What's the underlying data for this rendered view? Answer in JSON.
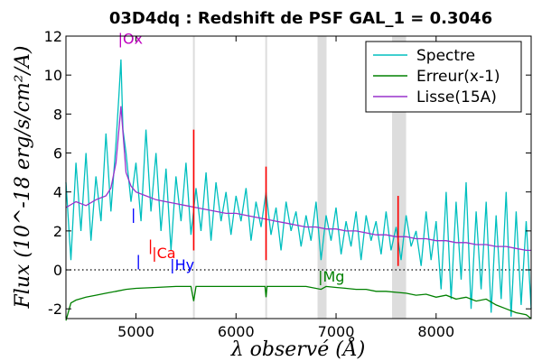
{
  "chart_data": {
    "type": "line",
    "title": "03D4dq : Redshift de PSF GAL_1 = 0.3046",
    "xlabel": "λ observé (Å)",
    "ylabel": "Flux (10^-18 erg/s/cm²/A)",
    "xlim": [
      4300,
      8950
    ],
    "ylim": [
      -2.5,
      12
    ],
    "x_ticks": [
      {
        "value": 5000,
        "label": "5000"
      },
      {
        "value": 6000,
        "label": "6000"
      },
      {
        "value": 7000,
        "label": "7000"
      },
      {
        "value": 8000,
        "label": "8000"
      }
    ],
    "y_ticks": [
      {
        "value": -2,
        "label": "-2"
      },
      {
        "value": 0,
        "label": "0"
      },
      {
        "value": 2,
        "label": "2"
      },
      {
        "value": 4,
        "label": "4"
      },
      {
        "value": 6,
        "label": "6"
      },
      {
        "value": 8,
        "label": "8"
      },
      {
        "value": 10,
        "label": "10"
      },
      {
        "value": 12,
        "label": "12"
      }
    ],
    "zero_line": true,
    "legend_position": "top-right",
    "sky_bands": [
      {
        "x": 5577,
        "width": 15
      },
      {
        "x": 6300,
        "width": 15
      },
      {
        "x": 6860,
        "width": 90
      },
      {
        "x": 7630,
        "width": 140
      }
    ],
    "series": [
      {
        "name": "Spectre",
        "color": "#00bfbf",
        "x": [
          4300,
          4350,
          4400,
          4450,
          4500,
          4550,
          4600,
          4650,
          4700,
          4750,
          4800,
          4830,
          4850,
          4870,
          4900,
          4950,
          5000,
          5050,
          5100,
          5150,
          5200,
          5250,
          5300,
          5350,
          5400,
          5450,
          5500,
          5550,
          5600,
          5650,
          5700,
          5750,
          5800,
          5850,
          5900,
          5950,
          6000,
          6050,
          6100,
          6150,
          6200,
          6250,
          6300,
          6350,
          6400,
          6450,
          6500,
          6550,
          6600,
          6650,
          6700,
          6750,
          6800,
          6850,
          6900,
          6950,
          7000,
          7050,
          7100,
          7150,
          7200,
          7250,
          7300,
          7350,
          7400,
          7450,
          7500,
          7550,
          7600,
          7650,
          7700,
          7750,
          7800,
          7850,
          7900,
          7950,
          8000,
          8050,
          8100,
          8150,
          8200,
          8250,
          8300,
          8350,
          8400,
          8450,
          8500,
          8550,
          8600,
          8650,
          8700,
          8750,
          8800,
          8850,
          8900,
          8950
        ],
        "y": [
          4.5,
          0.5,
          5.5,
          2.0,
          6.0,
          1.5,
          4.8,
          2.5,
          7.0,
          3.0,
          6.5,
          9.0,
          10.8,
          7.2,
          6.0,
          3.5,
          5.5,
          2.5,
          7.2,
          3.0,
          6.0,
          2.0,
          5.2,
          1.0,
          4.8,
          2.5,
          5.5,
          1.8,
          4.2,
          2.0,
          5.0,
          1.5,
          4.5,
          2.5,
          4.0,
          1.8,
          3.8,
          2.5,
          4.2,
          1.5,
          3.5,
          2.2,
          4.0,
          1.8,
          3.2,
          1.0,
          3.5,
          2.0,
          3.0,
          1.2,
          2.8,
          1.5,
          3.5,
          0.5,
          2.8,
          1.5,
          3.2,
          0.8,
          2.5,
          1.2,
          3.0,
          0.5,
          2.8,
          1.5,
          2.5,
          0.8,
          3.0,
          1.0,
          2.2,
          0.5,
          2.8,
          1.2,
          2.0,
          0.2,
          3.0,
          0.5,
          2.5,
          -1.0,
          4.0,
          -1.5,
          3.5,
          -0.5,
          4.5,
          -2.0,
          3.0,
          -1.0,
          3.5,
          -2.2,
          2.8,
          -1.5,
          4.0,
          -2.4,
          3.0,
          -1.8,
          2.5,
          -2.0
        ]
      },
      {
        "name": "Erreur(x-1)",
        "color": "#008000",
        "x": [
          4300,
          4350,
          4400,
          4500,
          4600,
          4700,
          4800,
          4900,
          5000,
          5200,
          5400,
          5550,
          5577,
          5600,
          5800,
          6000,
          6200,
          6290,
          6300,
          6310,
          6500,
          6700,
          6850,
          6900,
          7000,
          7100,
          7200,
          7300,
          7400,
          7500,
          7600,
          7700,
          7800,
          7900,
          8000,
          8100,
          8200,
          8300,
          8400,
          8500,
          8600,
          8700,
          8800,
          8900,
          8950
        ],
        "y": [
          -2.6,
          -1.7,
          -1.55,
          -1.4,
          -1.3,
          -1.2,
          -1.1,
          -1.0,
          -0.95,
          -0.9,
          -0.85,
          -0.85,
          -1.6,
          -0.85,
          -0.85,
          -0.85,
          -0.85,
          -0.85,
          -1.4,
          -0.85,
          -0.85,
          -0.85,
          -1.0,
          -0.85,
          -0.9,
          -0.95,
          -1.0,
          -1.0,
          -1.1,
          -1.1,
          -1.15,
          -1.2,
          -1.3,
          -1.25,
          -1.4,
          -1.3,
          -1.5,
          -1.4,
          -1.6,
          -1.5,
          -1.8,
          -2.0,
          -2.2,
          -2.3,
          -2.5
        ]
      },
      {
        "name": "Lisse(15A)",
        "color": "#9932cc",
        "x": [
          4300,
          4400,
          4500,
          4600,
          4700,
          4750,
          4800,
          4850,
          4900,
          4950,
          5000,
          5100,
          5200,
          5300,
          5400,
          5500,
          5600,
          5700,
          5800,
          5900,
          6000,
          6100,
          6200,
          6300,
          6400,
          6500,
          6600,
          6700,
          6800,
          6900,
          7000,
          7100,
          7200,
          7300,
          7400,
          7500,
          7600,
          7700,
          7800,
          7900,
          8000,
          8100,
          8200,
          8300,
          8400,
          8500,
          8600,
          8700,
          8800,
          8900,
          8950
        ],
        "y": [
          3.2,
          3.5,
          3.3,
          3.6,
          3.8,
          4.2,
          5.5,
          8.4,
          5.0,
          4.3,
          4.0,
          3.8,
          3.6,
          3.5,
          3.4,
          3.3,
          3.2,
          3.1,
          3.0,
          2.9,
          2.9,
          2.8,
          2.7,
          2.6,
          2.5,
          2.4,
          2.3,
          2.2,
          2.2,
          2.1,
          2.1,
          2.0,
          2.0,
          1.9,
          1.8,
          1.8,
          1.7,
          1.7,
          1.6,
          1.6,
          1.5,
          1.5,
          1.4,
          1.4,
          1.3,
          1.3,
          1.2,
          1.2,
          1.1,
          1.0,
          1.0
        ]
      }
    ],
    "sky_lines": [
      {
        "x": 5577,
        "y1": 1.0,
        "y2": 7.2,
        "color": "#ff0000"
      },
      {
        "x": 6300,
        "y1": 0.5,
        "y2": 5.3,
        "color": "#ff0000"
      },
      {
        "x": 7620,
        "y1": 0.2,
        "y2": 3.8,
        "color": "#ff0000"
      }
    ],
    "line_labels": [
      {
        "text": "|Ox",
        "x": 4820,
        "y": 11.6,
        "color": "#bf00bf"
      },
      {
        "text": "|",
        "x": 4950,
        "y": 2.6,
        "color": "#0000ff"
      },
      {
        "text": "|",
        "x": 5000,
        "y": 0.2,
        "color": "#0000ff"
      },
      {
        "text": "|",
        "x": 5120,
        "y": 1.0,
        "color": "#ff0000"
      },
      {
        "text": "|Ca",
        "x": 5160,
        "y": 0.6,
        "color": "#ff0000"
      },
      {
        "text": "|Hy",
        "x": 5340,
        "y": 0.0,
        "color": "#0000ff"
      },
      {
        "text": "|Mg",
        "x": 6820,
        "y": -0.6,
        "color": "#008000"
      }
    ]
  }
}
